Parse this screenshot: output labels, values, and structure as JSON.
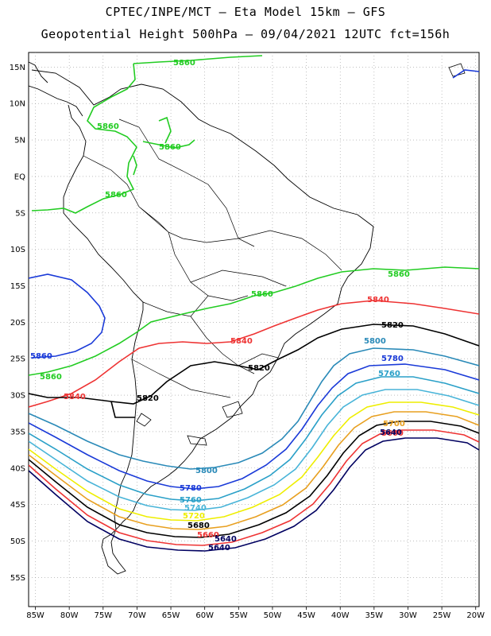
{
  "title_line1": "CPTEC/INPE/MCT –  Eta Model 15km – GFS",
  "title_line2": "Geopotential Height 500hPa – 09/04/2021 12UTC fct=156h",
  "axes": {
    "lon_ticks": [
      "85W",
      "80W",
      "75W",
      "70W",
      "65W",
      "60W",
      "55W",
      "50W",
      "45W",
      "40W",
      "35W",
      "30W",
      "25W",
      "20W"
    ],
    "lat_ticks": [
      "15N",
      "10N",
      "5N",
      "EQ",
      "5S",
      "10S",
      "15S",
      "20S",
      "25S",
      "30S",
      "35S",
      "40S",
      "45S",
      "50S",
      "55S"
    ],
    "lon_range": [
      -86,
      -19.5
    ],
    "lat_range": [
      17,
      -59
    ]
  },
  "contour_colors": {
    "5860": "#22cc22",
    "5840": "#ee3333",
    "5820": "#000000",
    "5800": "#2a8ab8",
    "5780": "#1a3ad8",
    "5760": "#2aa0c8",
    "5740": "#48b4d8",
    "5720": "#eeee00",
    "5700": "#e8a020",
    "5680": "#000000",
    "5660": "#ee3333",
    "5640": "#000060"
  },
  "contour_labels": {
    "l5860": "5860",
    "l5840": "5840",
    "l5820": "5820",
    "l5800": "5800",
    "l5780": "5780",
    "l5760": "5760",
    "l5740": "5740",
    "l5720": "5720",
    "l5700": "5700",
    "l5680": "5680",
    "l5660": "5660",
    "l5640": "5640"
  }
}
